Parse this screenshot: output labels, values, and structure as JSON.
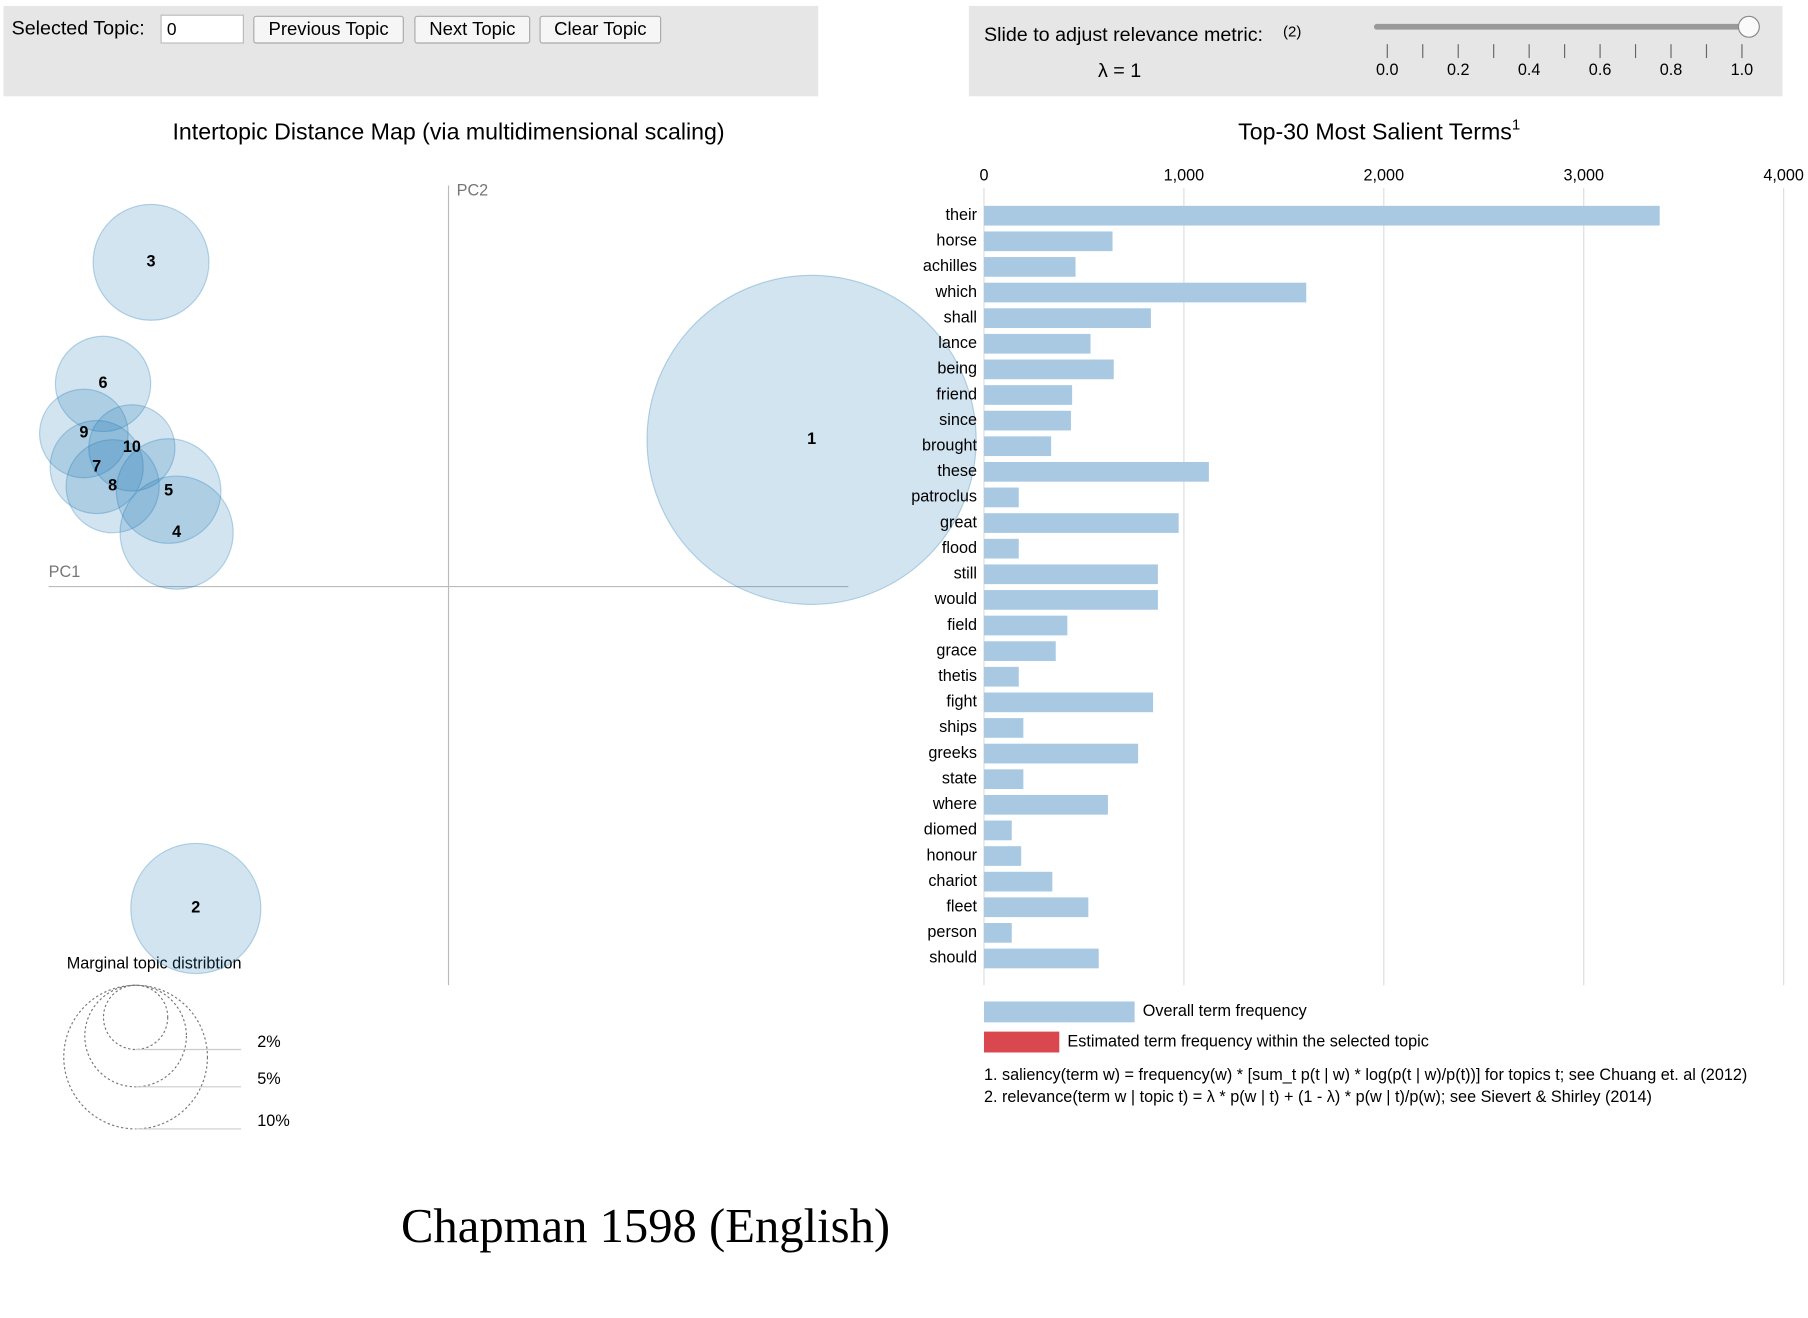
{
  "controls": {
    "selected_label": "Selected Topic:",
    "selected_value": "0",
    "buttons": [
      "Previous Topic",
      "Next Topic",
      "Clear Topic"
    ],
    "slider": {
      "label": "Slide to adjust relevance metric:",
      "note": "(2)",
      "lambda_label": "λ = 1",
      "value": 1,
      "range": [
        0,
        1
      ],
      "ticks": [
        {
          "value": 0,
          "label": "0.0"
        },
        0.2,
        0.4,
        0.6,
        0.8,
        {
          "value": 1,
          "label": "1.0"
        }
      ],
      "minor_ticks": [
        0.1,
        0.3,
        0.5,
        0.7,
        0.9
      ]
    }
  },
  "chart_data": [
    {
      "type": "scatter",
      "title": "Intertopic Distance Map (via multidimensional scaling)",
      "x_label": "PC1",
      "y_label": "PC2",
      "xlim": [
        -0.25,
        0.25
      ],
      "ylim": [
        -0.25,
        0.25
      ],
      "color": "#1f77b4",
      "labels": [
        "1",
        "2",
        "3",
        "4",
        "5",
        "6",
        "7",
        "8",
        "9",
        "10"
      ],
      "x": [
        0.227,
        -0.158,
        -0.186,
        -0.17,
        -0.175,
        -0.216,
        -0.22,
        -0.21,
        -0.228,
        -0.198
      ],
      "y": [
        0.091,
        -0.202,
        0.202,
        0.033,
        0.059,
        0.126,
        0.074,
        0.062,
        0.095,
        0.086
      ],
      "sizes": [
        52.5,
        8.2,
        6.5,
        6.2,
        5.3,
        4.4,
        4.2,
        4.2,
        3.8,
        3.6
      ],
      "size_legend_title": "Marginal topic distribtion",
      "size_legend": [
        {
          "value": 2,
          "label": "2%"
        },
        {
          "value": 5,
          "label": "5%"
        },
        {
          "value": 10,
          "label": "10%"
        }
      ]
    },
    {
      "type": "bar",
      "title": "Top-30 Most Salient Terms",
      "title_note": "1",
      "categories": [
        "their",
        "horse",
        "achilles",
        "which",
        "shall",
        "lance",
        "being",
        "friend",
        "since",
        "brought",
        "these",
        "patroclus",
        "great",
        "flood",
        "still",
        "would",
        "field",
        "grace",
        "thetis",
        "fight",
        "ships",
        "greeks",
        "state",
        "where",
        "diomed",
        "honour",
        "chariot",
        "fleet",
        "person",
        "should"
      ],
      "series": [
        {
          "name": "Overall term frequency",
          "color": "#a9c9e3",
          "values": [
            3380,
            643,
            458,
            1612,
            835,
            533,
            649,
            441,
            435,
            336,
            1125,
            174,
            974,
            174,
            870,
            870,
            417,
            359,
            174,
            846,
            197,
            771,
            197,
            620,
            139,
            186,
            342,
            522,
            139,
            574
          ]
        }
      ],
      "legend": [
        {
          "name": "Estimated term frequency within the selected topic",
          "color": "#d9474f"
        }
      ],
      "xlim": [
        0,
        4000
      ],
      "xticks": [
        0,
        {
          "value": 1000,
          "label": "1,000"
        },
        {
          "value": 2000,
          "label": "2,000"
        },
        {
          "value": 3000,
          "label": "3,000"
        },
        {
          "value": 4000,
          "label": "4,000"
        }
      ],
      "grid": true,
      "footnotes": [
        "1. saliency(term w) = frequency(w) * [sum_t p(t | w) * log(p(t | w)/p(t))] for topics t; see Chuang et. al (2012)",
        "2. relevance(term w | topic t) = λ * p(w | t) + (1 - λ) * p(w | t)/p(w); see Sievert & Shirley (2014)"
      ]
    }
  ],
  "caption": "Chapman 1598 (English)"
}
